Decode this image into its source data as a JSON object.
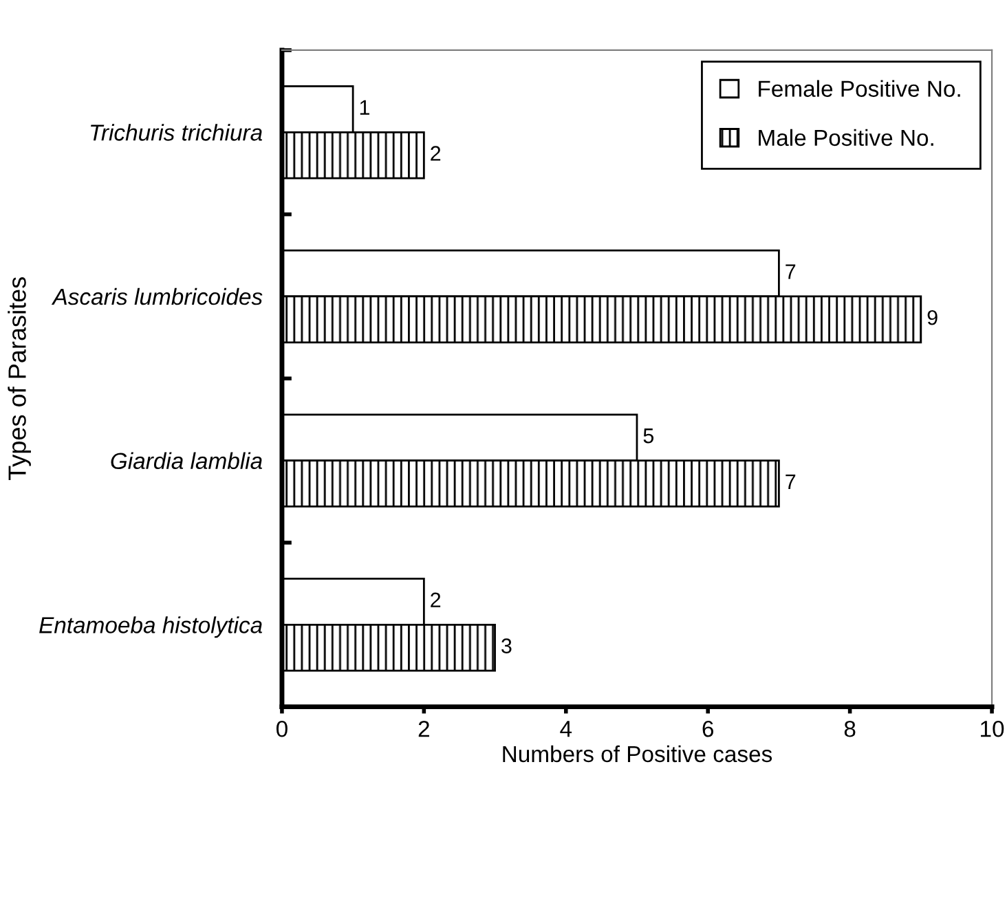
{
  "chart_data": {
    "type": "bar",
    "orientation": "horizontal",
    "xlabel": "Numbers of Positive cases",
    "ylabel": "Types of Parasites",
    "categories": [
      "Trichuris trichiura",
      "Ascaris lumbricoides",
      "Giardia lamblia",
      "Entamoeba histolytica"
    ],
    "series": [
      {
        "name": "Female Positive No.",
        "color": "#ffffff",
        "values": [
          1,
          7,
          5,
          2
        ]
      },
      {
        "name": "Male Positive No.",
        "color": "#000000",
        "values": [
          2,
          9,
          7,
          3
        ]
      }
    ],
    "xlim": [
      0,
      10
    ],
    "xticks": [
      0,
      2,
      4,
      6,
      8,
      10
    ],
    "grid": false,
    "legend": "top right",
    "data_labels": true
  }
}
